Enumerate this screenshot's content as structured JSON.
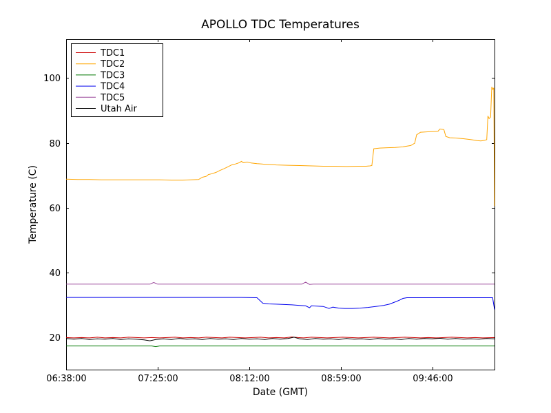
{
  "figure": {
    "title": "APOLLO TDC Temperatures",
    "xlabel": "Date (GMT)",
    "ylabel": "Temperature (C)"
  },
  "chart_data": {
    "type": "line",
    "title": "APOLLO TDC Temperatures",
    "xlabel": "Date (GMT)",
    "ylabel": "Temperature (C)",
    "x_unit": "minutes since 00:00 GMT",
    "xlim": [
      398,
      618
    ],
    "ylim": [
      10,
      112
    ],
    "grid": false,
    "legend_position": "upper left",
    "x_ticks": [
      {
        "value": 398,
        "label": "06:38:00"
      },
      {
        "value": 445,
        "label": "07:25:00"
      },
      {
        "value": 492,
        "label": "08:12:00"
      },
      {
        "value": 539,
        "label": "08:59:00"
      },
      {
        "value": 586,
        "label": "09:46:00"
      }
    ],
    "y_ticks": [
      {
        "value": 20,
        "label": "20"
      },
      {
        "value": 40,
        "label": "40"
      },
      {
        "value": 60,
        "label": "60"
      },
      {
        "value": 80,
        "label": "80"
      },
      {
        "value": 100,
        "label": "100"
      }
    ],
    "series": [
      {
        "name": "TDC1",
        "color": "#cc0000",
        "points": [
          [
            398,
            19.9
          ],
          [
            402,
            19.8
          ],
          [
            406,
            19.9
          ],
          [
            410,
            19.8
          ],
          [
            414,
            20.0
          ],
          [
            418,
            19.8
          ],
          [
            422,
            19.9
          ],
          [
            426,
            19.8
          ],
          [
            430,
            20.0
          ],
          [
            434,
            19.9
          ],
          [
            438,
            19.8
          ],
          [
            442,
            19.9
          ],
          [
            446,
            19.8
          ],
          [
            450,
            19.9
          ],
          [
            454,
            20.0
          ],
          [
            458,
            19.8
          ],
          [
            462,
            19.9
          ],
          [
            466,
            19.8
          ],
          [
            470,
            20.0
          ],
          [
            474,
            19.9
          ],
          [
            478,
            19.8
          ],
          [
            482,
            20.0
          ],
          [
            486,
            19.9
          ],
          [
            490,
            19.8
          ],
          [
            494,
            19.9
          ],
          [
            498,
            20.0
          ],
          [
            502,
            19.8
          ],
          [
            506,
            19.9
          ],
          [
            510,
            19.8
          ],
          [
            514,
            20.1
          ],
          [
            517,
            19.9
          ],
          [
            520,
            19.8
          ],
          [
            524,
            20.0
          ],
          [
            528,
            19.9
          ],
          [
            532,
            19.8
          ],
          [
            536,
            19.9
          ],
          [
            540,
            20.0
          ],
          [
            544,
            19.9
          ],
          [
            548,
            19.8
          ],
          [
            552,
            19.9
          ],
          [
            556,
            20.0
          ],
          [
            560,
            19.9
          ],
          [
            564,
            19.8
          ],
          [
            568,
            19.9
          ],
          [
            572,
            20.0
          ],
          [
            576,
            19.9
          ],
          [
            580,
            19.8
          ],
          [
            584,
            19.9
          ],
          [
            588,
            19.8
          ],
          [
            592,
            19.9
          ],
          [
            596,
            20.0
          ],
          [
            600,
            19.9
          ],
          [
            604,
            19.8
          ],
          [
            608,
            19.9
          ],
          [
            612,
            19.8
          ],
          [
            618,
            19.9
          ]
        ]
      },
      {
        "name": "TDC2",
        "color": "#ffa500",
        "points": [
          [
            398,
            68.8
          ],
          [
            404,
            68.7
          ],
          [
            410,
            68.7
          ],
          [
            416,
            68.6
          ],
          [
            422,
            68.6
          ],
          [
            428,
            68.6
          ],
          [
            434,
            68.6
          ],
          [
            440,
            68.6
          ],
          [
            446,
            68.6
          ],
          [
            452,
            68.5
          ],
          [
            458,
            68.5
          ],
          [
            462,
            68.6
          ],
          [
            466,
            68.7
          ],
          [
            468,
            69.4
          ],
          [
            470,
            69.7
          ],
          [
            471,
            70.2
          ],
          [
            473,
            70.5
          ],
          [
            475,
            70.9
          ],
          [
            477,
            71.5
          ],
          [
            479,
            72.0
          ],
          [
            481,
            72.6
          ],
          [
            483,
            73.2
          ],
          [
            485,
            73.5
          ],
          [
            487,
            73.9
          ],
          [
            488,
            74.3
          ],
          [
            489,
            73.9
          ],
          [
            491,
            74.1
          ],
          [
            493,
            73.8
          ],
          [
            496,
            73.6
          ],
          [
            500,
            73.4
          ],
          [
            506,
            73.2
          ],
          [
            512,
            73.1
          ],
          [
            518,
            73.0
          ],
          [
            524,
            72.9
          ],
          [
            530,
            72.8
          ],
          [
            536,
            72.8
          ],
          [
            542,
            72.7
          ],
          [
            548,
            72.8
          ],
          [
            552,
            72.8
          ],
          [
            554,
            72.9
          ],
          [
            555,
            73.0
          ],
          [
            556,
            78.2
          ],
          [
            559,
            78.4
          ],
          [
            563,
            78.5
          ],
          [
            567,
            78.6
          ],
          [
            571,
            78.8
          ],
          [
            575,
            79.2
          ],
          [
            577,
            79.9
          ],
          [
            578,
            82.5
          ],
          [
            580,
            83.3
          ],
          [
            583,
            83.4
          ],
          [
            586,
            83.5
          ],
          [
            589,
            83.6
          ],
          [
            590,
            84.3
          ],
          [
            592,
            84.1
          ],
          [
            593,
            82.0
          ],
          [
            595,
            81.6
          ],
          [
            598,
            81.5
          ],
          [
            602,
            81.3
          ],
          [
            606,
            81.0
          ],
          [
            609,
            80.7
          ],
          [
            611,
            80.6
          ],
          [
            613,
            80.8
          ],
          [
            614,
            81.0
          ],
          [
            614.6,
            88.3
          ],
          [
            615.2,
            87.5
          ],
          [
            616,
            88.0
          ],
          [
            616.6,
            97.3
          ],
          [
            617.2,
            96.5
          ],
          [
            617.6,
            97.0
          ],
          [
            618,
            60.5
          ]
        ]
      },
      {
        "name": "TDC3",
        "color": "#007700",
        "points": [
          [
            398,
            17.3
          ],
          [
            420,
            17.3
          ],
          [
            442,
            17.3
          ],
          [
            444,
            17.1
          ],
          [
            446,
            17.3
          ],
          [
            480,
            17.3
          ],
          [
            520,
            17.3
          ],
          [
            560,
            17.3
          ],
          [
            618,
            17.3
          ]
        ]
      },
      {
        "name": "TDC4",
        "color": "#0000ee",
        "points": [
          [
            398,
            32.3
          ],
          [
            420,
            32.3
          ],
          [
            445,
            32.3
          ],
          [
            470,
            32.3
          ],
          [
            488,
            32.3
          ],
          [
            496,
            32.2
          ],
          [
            499,
            30.5
          ],
          [
            502,
            30.3
          ],
          [
            506,
            30.2
          ],
          [
            510,
            30.1
          ],
          [
            514,
            30.0
          ],
          [
            518,
            29.8
          ],
          [
            521,
            29.7
          ],
          [
            523,
            29.1
          ],
          [
            524,
            29.7
          ],
          [
            527,
            29.6
          ],
          [
            530,
            29.5
          ],
          [
            533,
            28.9
          ],
          [
            535,
            29.3
          ],
          [
            538,
            29.0
          ],
          [
            541,
            28.9
          ],
          [
            545,
            28.9
          ],
          [
            549,
            29.0
          ],
          [
            553,
            29.2
          ],
          [
            557,
            29.5
          ],
          [
            561,
            29.8
          ],
          [
            564,
            30.2
          ],
          [
            567,
            30.9
          ],
          [
            569,
            31.4
          ],
          [
            571,
            32.0
          ],
          [
            573,
            32.2
          ],
          [
            580,
            32.2
          ],
          [
            590,
            32.2
          ],
          [
            600,
            32.2
          ],
          [
            610,
            32.2
          ],
          [
            617,
            32.2
          ],
          [
            618,
            28.6
          ]
        ]
      },
      {
        "name": "TDC5",
        "color": "#994499",
        "points": [
          [
            398,
            36.4
          ],
          [
            420,
            36.4
          ],
          [
            441,
            36.4
          ],
          [
            443,
            36.9
          ],
          [
            445,
            36.4
          ],
          [
            460,
            36.4
          ],
          [
            480,
            36.4
          ],
          [
            500,
            36.4
          ],
          [
            519,
            36.4
          ],
          [
            521,
            37.0
          ],
          [
            523,
            36.3
          ],
          [
            525,
            36.4
          ],
          [
            550,
            36.4
          ],
          [
            580,
            36.4
          ],
          [
            618,
            36.4
          ]
        ]
      },
      {
        "name": "Utah Air",
        "color": "#000000",
        "points": [
          [
            398,
            19.6
          ],
          [
            402,
            19.4
          ],
          [
            406,
            19.6
          ],
          [
            410,
            19.3
          ],
          [
            414,
            19.5
          ],
          [
            418,
            19.4
          ],
          [
            422,
            19.6
          ],
          [
            426,
            19.3
          ],
          [
            430,
            19.5
          ],
          [
            434,
            19.4
          ],
          [
            438,
            19.2
          ],
          [
            441,
            18.9
          ],
          [
            444,
            19.3
          ],
          [
            448,
            19.5
          ],
          [
            452,
            19.3
          ],
          [
            456,
            19.6
          ],
          [
            460,
            19.4
          ],
          [
            464,
            19.5
          ],
          [
            468,
            19.3
          ],
          [
            472,
            19.6
          ],
          [
            476,
            19.4
          ],
          [
            480,
            19.5
          ],
          [
            484,
            19.3
          ],
          [
            488,
            19.6
          ],
          [
            492,
            19.4
          ],
          [
            496,
            19.5
          ],
          [
            500,
            19.3
          ],
          [
            504,
            19.6
          ],
          [
            508,
            19.4
          ],
          [
            512,
            19.6
          ],
          [
            515,
            20.0
          ],
          [
            518,
            19.5
          ],
          [
            522,
            19.3
          ],
          [
            526,
            19.6
          ],
          [
            530,
            19.4
          ],
          [
            534,
            19.5
          ],
          [
            538,
            19.3
          ],
          [
            542,
            19.6
          ],
          [
            546,
            19.4
          ],
          [
            550,
            19.5
          ],
          [
            554,
            19.3
          ],
          [
            558,
            19.6
          ],
          [
            562,
            19.4
          ],
          [
            566,
            19.5
          ],
          [
            570,
            19.3
          ],
          [
            574,
            19.6
          ],
          [
            578,
            19.4
          ],
          [
            582,
            19.6
          ],
          [
            586,
            19.5
          ],
          [
            590,
            19.7
          ],
          [
            594,
            19.4
          ],
          [
            598,
            19.6
          ],
          [
            602,
            19.4
          ],
          [
            606,
            19.5
          ],
          [
            610,
            19.4
          ],
          [
            614,
            19.6
          ],
          [
            618,
            19.5
          ]
        ]
      }
    ]
  }
}
